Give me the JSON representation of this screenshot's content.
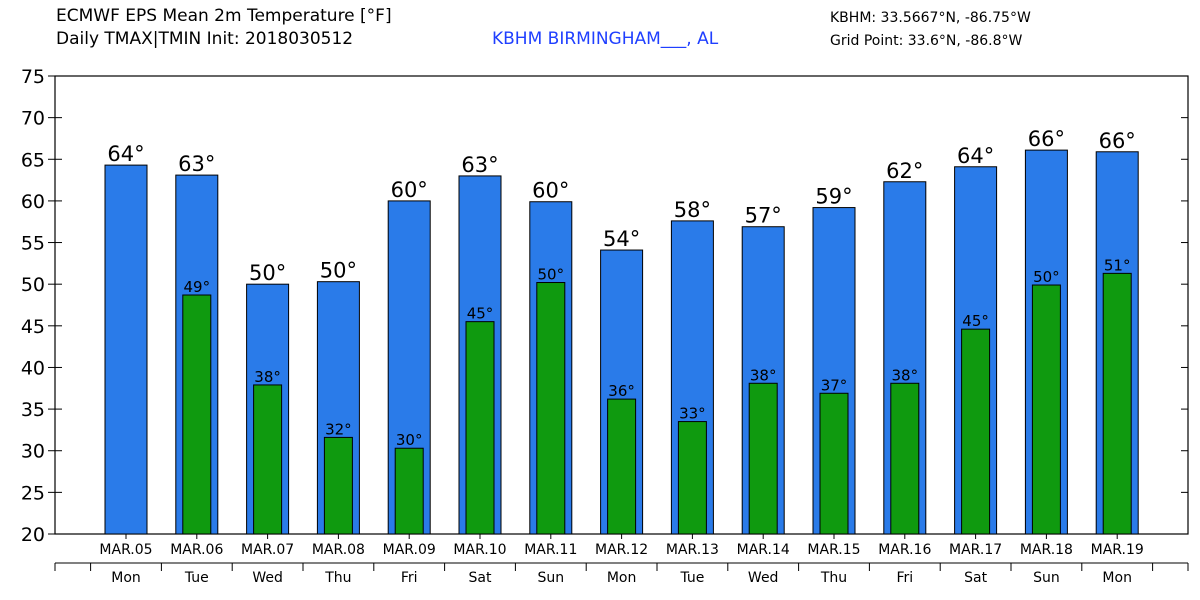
{
  "header": {
    "title_line1": "ECMWF EPS Mean 2m Temperature [°F]",
    "title_line2": "Daily TMAX|TMIN Init: 2018030512",
    "station": "KBHM BIRMINGHAM___, AL",
    "coords": "KBHM: 33.5667°N, -86.75°W",
    "grid_point": "Grid Point: 33.6°N, -86.8°W"
  },
  "colors": {
    "tmax": "#2a7be9",
    "tmin": "#0f9a0f",
    "station_text": "#1f3fff"
  },
  "chart_data": {
    "type": "bar",
    "title": "ECMWF EPS Mean 2m Temperature [°F]",
    "ylim": [
      20,
      75
    ],
    "yticks": [
      20,
      25,
      30,
      35,
      40,
      45,
      50,
      55,
      60,
      65,
      70,
      75
    ],
    "grid": false,
    "categories": [
      "MAR.05",
      "MAR.06",
      "MAR.07",
      "MAR.08",
      "MAR.09",
      "MAR.10",
      "MAR.11",
      "MAR.12",
      "MAR.13",
      "MAR.14",
      "MAR.15",
      "MAR.16",
      "MAR.17",
      "MAR.18",
      "MAR.19"
    ],
    "weekdays": [
      "Mon",
      "Tue",
      "Wed",
      "Thu",
      "Fri",
      "Sat",
      "Sun",
      "Mon",
      "Tue",
      "Wed",
      "Thu",
      "Fri",
      "Sat",
      "Sun",
      "Mon"
    ],
    "series": [
      {
        "name": "TMAX",
        "values": [
          64.3,
          63.1,
          50.0,
          50.3,
          60.0,
          63.0,
          59.9,
          54.1,
          57.6,
          56.9,
          59.2,
          62.3,
          64.1,
          66.1,
          65.9
        ],
        "labels": [
          "64°",
          "63°",
          "50°",
          "50°",
          "60°",
          "63°",
          "60°",
          "54°",
          "58°",
          "57°",
          "59°",
          "62°",
          "64°",
          "66°",
          "66°"
        ]
      },
      {
        "name": "TMIN",
        "values": [
          null,
          48.7,
          37.9,
          31.6,
          30.3,
          45.5,
          50.2,
          36.2,
          33.5,
          38.1,
          36.9,
          38.1,
          44.6,
          49.9,
          51.3
        ],
        "labels": [
          "",
          "49°",
          "38°",
          "32°",
          "30°",
          "45°",
          "50°",
          "36°",
          "33°",
          "38°",
          "37°",
          "38°",
          "45°",
          "50°",
          "51°"
        ]
      }
    ]
  }
}
